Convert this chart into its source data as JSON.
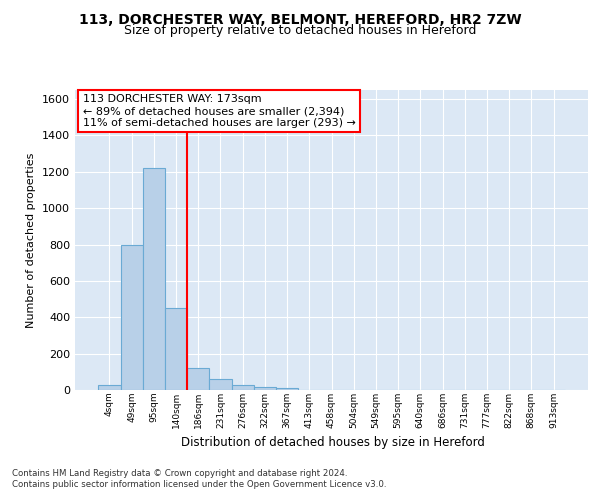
{
  "title_line1": "113, DORCHESTER WAY, BELMONT, HEREFORD, HR2 7ZW",
  "title_line2": "Size of property relative to detached houses in Hereford",
  "xlabel": "Distribution of detached houses by size in Hereford",
  "ylabel": "Number of detached properties",
  "footer_line1": "Contains HM Land Registry data © Crown copyright and database right 2024.",
  "footer_line2": "Contains public sector information licensed under the Open Government Licence v3.0.",
  "categories": [
    "4sqm",
    "49sqm",
    "95sqm",
    "140sqm",
    "186sqm",
    "231sqm",
    "276sqm",
    "322sqm",
    "367sqm",
    "413sqm",
    "458sqm",
    "504sqm",
    "549sqm",
    "595sqm",
    "640sqm",
    "686sqm",
    "731sqm",
    "777sqm",
    "822sqm",
    "868sqm",
    "913sqm"
  ],
  "values": [
    25,
    800,
    1220,
    450,
    120,
    60,
    25,
    15,
    10,
    0,
    0,
    0,
    0,
    0,
    0,
    0,
    0,
    0,
    0,
    0,
    0
  ],
  "bar_color": "#b8d0e8",
  "bar_edge_color": "#6aaad4",
  "background_color": "#dce8f5",
  "grid_color": "#ffffff",
  "red_line_x": 3.5,
  "annotation_line1": "113 DORCHESTER WAY: 173sqm",
  "annotation_line2": "← 89% of detached houses are smaller (2,394)",
  "annotation_line3": "11% of semi-detached houses are larger (293) →",
  "ylim_max": 1650,
  "yticks": [
    0,
    200,
    400,
    600,
    800,
    1000,
    1200,
    1400,
    1600
  ]
}
